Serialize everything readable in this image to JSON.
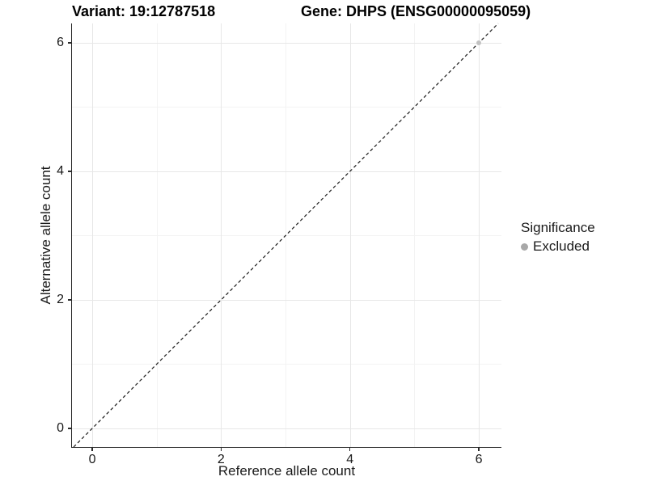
{
  "chart_data": {
    "type": "scatter",
    "title_left": "Variant: 19:12787518",
    "title_right": "Gene: DHPS (ENSG00000095059)",
    "xlabel": "Reference allele count",
    "ylabel": "Alternative allele count",
    "xlim": [
      -0.314,
      6.35
    ],
    "ylim": [
      -0.289,
      6.3
    ],
    "xticks": [
      0,
      2,
      4,
      6
    ],
    "yticks": [
      0,
      2,
      4,
      6
    ],
    "x_minor": [
      1,
      3,
      5
    ],
    "y_minor": [
      1,
      3,
      5
    ],
    "grid": "major+minor",
    "identity_line": {
      "equation": "y = x",
      "style": "dashed",
      "color": "#1a1a1a"
    },
    "points": [
      {
        "x": 6,
        "y": 6,
        "significance": "Excluded"
      }
    ],
    "legend": {
      "title": "Significance",
      "position": "right",
      "entries": [
        {
          "label": "Excluded",
          "color": "#a8a8a8"
        }
      ]
    },
    "colors": {
      "point": "#c2c2c2",
      "grid_major": "#e7e7e7",
      "grid_minor": "#f3f3f3",
      "axis_line": "#2b2b2b",
      "text": "#1a1a1a"
    }
  }
}
